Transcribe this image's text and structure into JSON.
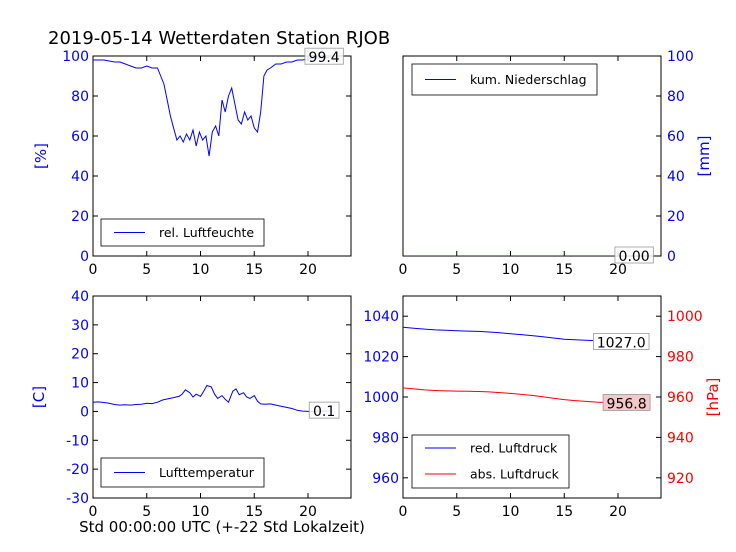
{
  "figure": {
    "title": "2019-05-14 Wetterdaten Station RJOB",
    "xlabel": "Std 00:00:00 UTC (+-22 Std Lokalzeit)"
  },
  "colors": {
    "blue": "#0000ff",
    "red": "#ff0000",
    "black": "#000000"
  },
  "chart_data": [
    {
      "type": "line",
      "panel": "top-left",
      "ylabel": "[%]",
      "ylabel_color": "#0000ff",
      "xlim": [
        0,
        24
      ],
      "ylim": [
        0,
        100
      ],
      "xticks": [
        0,
        5,
        10,
        15,
        20
      ],
      "yticks": [
        0,
        20,
        40,
        60,
        80,
        100
      ],
      "tick_color_y": "#0000ff",
      "legend": "bottom-left",
      "series": [
        {
          "name": "rel. Luftfeuchte",
          "color": "#0000ff",
          "x": [
            0,
            0.5,
            1,
            1.5,
            2,
            2.5,
            3,
            3.5,
            4,
            4.5,
            5,
            5.5,
            6,
            6.3,
            6.6,
            6.9,
            7.2,
            7.5,
            7.8,
            8.1,
            8.4,
            8.7,
            9,
            9.3,
            9.6,
            9.9,
            10.2,
            10.5,
            10.8,
            11.1,
            11.4,
            11.7,
            12,
            12.3,
            12.6,
            12.9,
            13.2,
            13.5,
            13.8,
            14.1,
            14.4,
            14.7,
            15,
            15.3,
            15.6,
            15.9,
            16.2,
            16.5,
            17,
            17.5,
            18,
            18.5,
            19,
            19.5,
            20,
            20.5,
            21,
            21.5,
            22
          ],
          "y": [
            98,
            98,
            98,
            97.5,
            97,
            97,
            96,
            95,
            94,
            94,
            95,
            94,
            94,
            90,
            86,
            78,
            70,
            64,
            58,
            60,
            57,
            61,
            58,
            63,
            55,
            62,
            58,
            60,
            50,
            62,
            65,
            60,
            78,
            72,
            80,
            84,
            76,
            68,
            66,
            72,
            68,
            70,
            64,
            62,
            72,
            90,
            93,
            94,
            96,
            96,
            97,
            97,
            98,
            98,
            98.5,
            99,
            99,
            99,
            99.4
          ]
        }
      ],
      "annotations": [
        {
          "text": "99.4",
          "x": 21.5,
          "y": 99.4,
          "color": "#000000"
        }
      ]
    },
    {
      "type": "line",
      "panel": "top-right",
      "ylabel": "[mm]",
      "ylabel_color": "#0000ff",
      "xlim": [
        0,
        24
      ],
      "ylim": [
        0,
        100
      ],
      "xticks": [
        0,
        5,
        10,
        15,
        20
      ],
      "yticks": [
        0,
        20,
        40,
        60,
        80,
        100
      ],
      "tick_color_y": "#0000ff",
      "legend": "top-left",
      "series": [
        {
          "name": "kum. Niederschlag",
          "color": "#0000ff",
          "x": [
            0,
            22
          ],
          "y": [
            0,
            0
          ]
        }
      ],
      "annotations": [
        {
          "text": "0.00",
          "x": 21.5,
          "y": 0,
          "color": "#000000"
        }
      ]
    },
    {
      "type": "line",
      "panel": "bottom-left",
      "ylabel": "[C]",
      "ylabel_color": "#0000ff",
      "xlim": [
        0,
        24
      ],
      "ylim": [
        -30,
        40
      ],
      "xticks": [
        0,
        5,
        10,
        15,
        20
      ],
      "yticks": [
        -30,
        -20,
        -10,
        0,
        10,
        20,
        30,
        40
      ],
      "tick_color_y": "#0000ff",
      "legend": "bottom-left",
      "series": [
        {
          "name": "Lufttemperatur",
          "color": "#0000ff",
          "x": [
            0,
            0.5,
            1,
            1.5,
            2,
            2.5,
            3,
            3.5,
            4,
            4.5,
            5,
            5.5,
            6,
            6.5,
            7,
            7.5,
            8,
            8.3,
            8.6,
            9,
            9.3,
            9.6,
            10,
            10.3,
            10.6,
            11,
            11.3,
            11.6,
            12,
            12.3,
            12.6,
            13,
            13.3,
            13.6,
            14,
            14.3,
            14.6,
            15,
            15.3,
            15.6,
            16,
            16.5,
            17,
            17.5,
            18,
            18.5,
            19,
            19.5,
            20,
            20.5,
            21,
            21.5,
            22
          ],
          "y": [
            3.2,
            3.3,
            3.1,
            2.8,
            2.4,
            2.2,
            2.3,
            2.2,
            2.4,
            2.5,
            2.8,
            2.7,
            3.2,
            4,
            4.4,
            4.8,
            5.2,
            6,
            7.5,
            6.5,
            5,
            6,
            5.2,
            7,
            9,
            8.5,
            6,
            4.5,
            5.5,
            4.2,
            3.2,
            7,
            7.8,
            5.8,
            6.5,
            5,
            4.5,
            5.5,
            3.5,
            2.6,
            2.5,
            2.6,
            2.2,
            1.8,
            1.4,
            1.0,
            0.4,
            0.1,
            0.0,
            0.0,
            0.1,
            0.1,
            0.1
          ]
        }
      ],
      "annotations": [
        {
          "text": "0.1",
          "x": 21.5,
          "y": 0.1,
          "color": "#000000"
        }
      ]
    },
    {
      "type": "line",
      "panel": "bottom-right",
      "ylabel": "[hPa]",
      "ylabel_color": "#ff0000",
      "xlim": [
        0,
        24
      ],
      "ylim": [
        950,
        1050
      ],
      "yticks": [
        960,
        980,
        1000,
        1020,
        1040
      ],
      "tick_color_y": "#0000ff",
      "ylim_right": [
        910,
        1010
      ],
      "yticks_right": [
        920,
        940,
        960,
        980,
        1000
      ],
      "tick_color_y_right": "#ff0000",
      "xticks": [
        0,
        5,
        10,
        15,
        20
      ],
      "legend": "bottom-left",
      "series": [
        {
          "name": "red. Luftdruck",
          "color": "#0000ff",
          "axis": "left",
          "x": [
            0,
            1,
            2,
            3,
            4,
            5,
            6,
            7,
            8,
            9,
            10,
            11,
            12,
            13,
            14,
            15,
            16,
            17,
            18,
            19,
            20,
            21,
            22
          ],
          "y": [
            1034.5,
            1034,
            1033.6,
            1033.2,
            1033,
            1032.8,
            1032.6,
            1032.5,
            1032.2,
            1031.8,
            1031.3,
            1030.9,
            1030.4,
            1029.8,
            1029.2,
            1028.6,
            1028.3,
            1028.1,
            1027.8,
            1027.6,
            1027.4,
            1027.2,
            1027.0
          ]
        },
        {
          "name": "abs. Luftdruck",
          "color": "#ff0000",
          "axis": "right",
          "x": [
            0,
            1,
            2,
            3,
            4,
            5,
            6,
            7,
            8,
            9,
            10,
            11,
            12,
            13,
            14,
            15,
            16,
            17,
            18,
            19,
            20,
            21,
            22
          ],
          "y": [
            964.5,
            964,
            963.5,
            963.2,
            963,
            962.9,
            962.8,
            962.7,
            962.5,
            962.2,
            961.8,
            961.3,
            960.8,
            960.1,
            959.4,
            958.7,
            958.2,
            957.8,
            957.5,
            957.3,
            957.1,
            956.9,
            956.8
          ]
        }
      ],
      "annotations": [
        {
          "text": "1027.0",
          "x": 20.3,
          "y": 1027.0,
          "axis": "left",
          "color": "#000000",
          "bg": "#ffffff"
        },
        {
          "text": "956.8",
          "x": 20.8,
          "y": 956.8,
          "axis": "right",
          "color": "#000000",
          "bg": "#f4c8c8"
        }
      ]
    }
  ]
}
